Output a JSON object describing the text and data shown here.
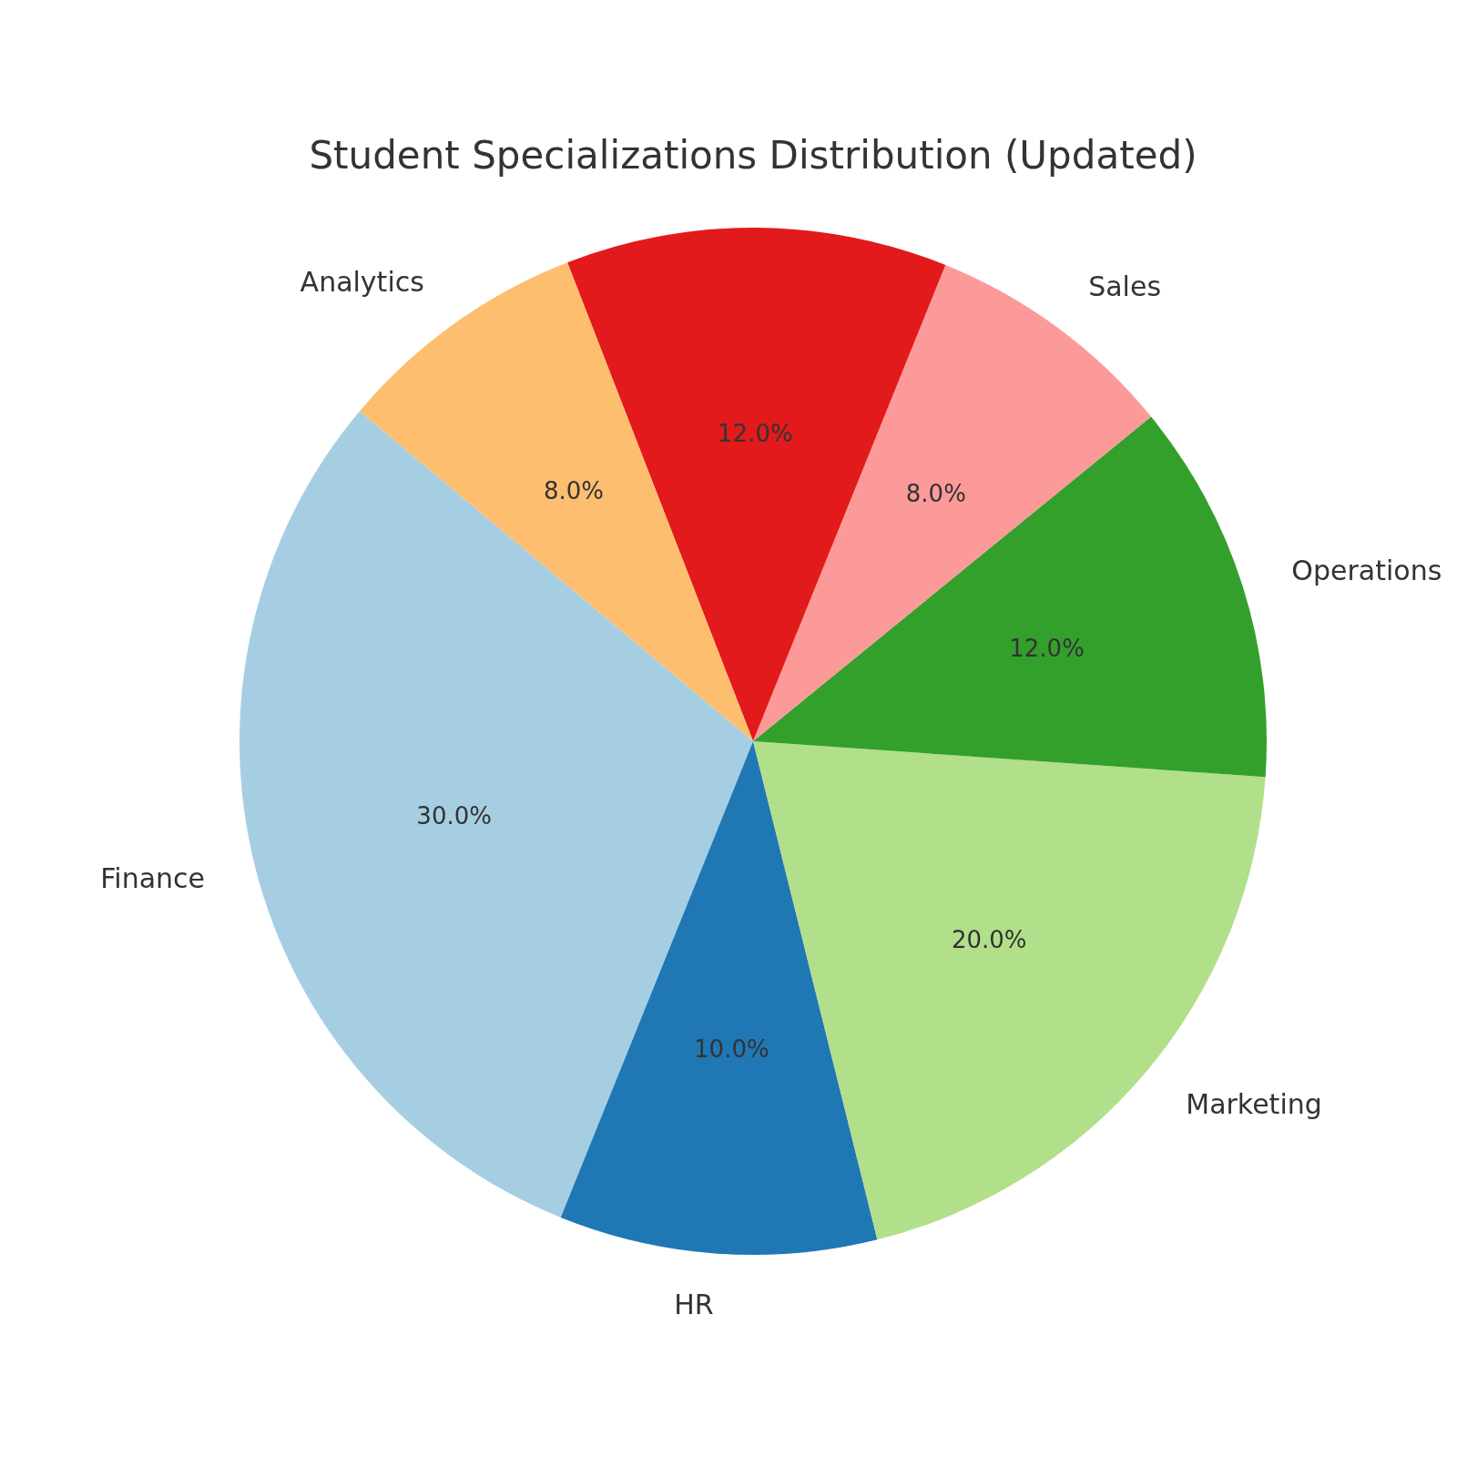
{
  "chart_data": {
    "type": "pie",
    "title": "Student Specializations Distribution (Updated)",
    "categories": [
      "Finance",
      "HR",
      "Marketing",
      "Operations",
      "Sales",
      null,
      "Analytics"
    ],
    "values": [
      30,
      10,
      20,
      12,
      8,
      12,
      8
    ],
    "colors": [
      "#a6cee3",
      "#1f78b4",
      "#b2df8a",
      "#33a02c",
      "#fb9a99",
      "#e31a1c",
      "#fdbf6f"
    ],
    "value_labels": [
      "30.0%",
      "10.0%",
      "20.0%",
      "12.0%",
      "8.0%",
      "12.0%",
      "8.0%"
    ]
  }
}
